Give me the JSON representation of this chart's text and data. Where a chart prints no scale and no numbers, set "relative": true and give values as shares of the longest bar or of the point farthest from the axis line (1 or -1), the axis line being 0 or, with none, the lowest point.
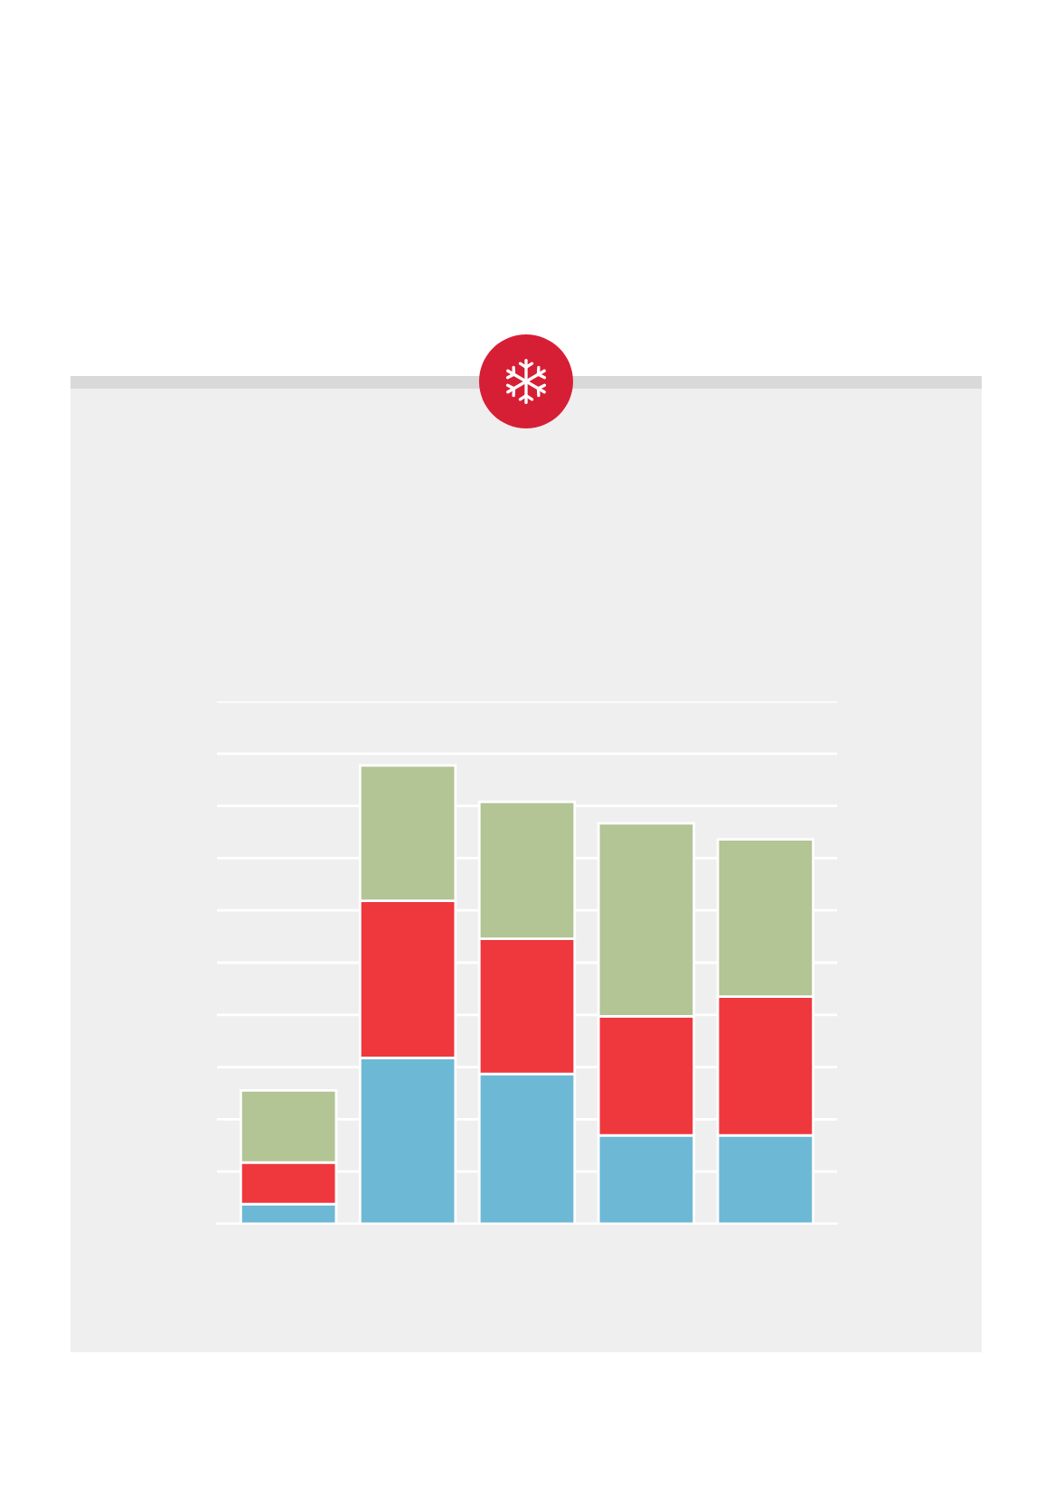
{
  "chart_data": {
    "type": "bar",
    "stacked": true,
    "relative": true,
    "grid": "y",
    "categories": [
      null,
      null,
      null,
      null,
      null
    ],
    "series": [
      {
        "color": "#6db8d5",
        "values": [
          0.043,
          0.362,
          0.327,
          0.193,
          0.193
        ]
      },
      {
        "color": "#ef373e",
        "values": [
          0.091,
          0.343,
          0.295,
          0.26,
          0.303
        ]
      },
      {
        "color": "#b3c495",
        "values": [
          0.157,
          0.295,
          0.299,
          0.421,
          0.343
        ]
      }
    ]
  }
}
